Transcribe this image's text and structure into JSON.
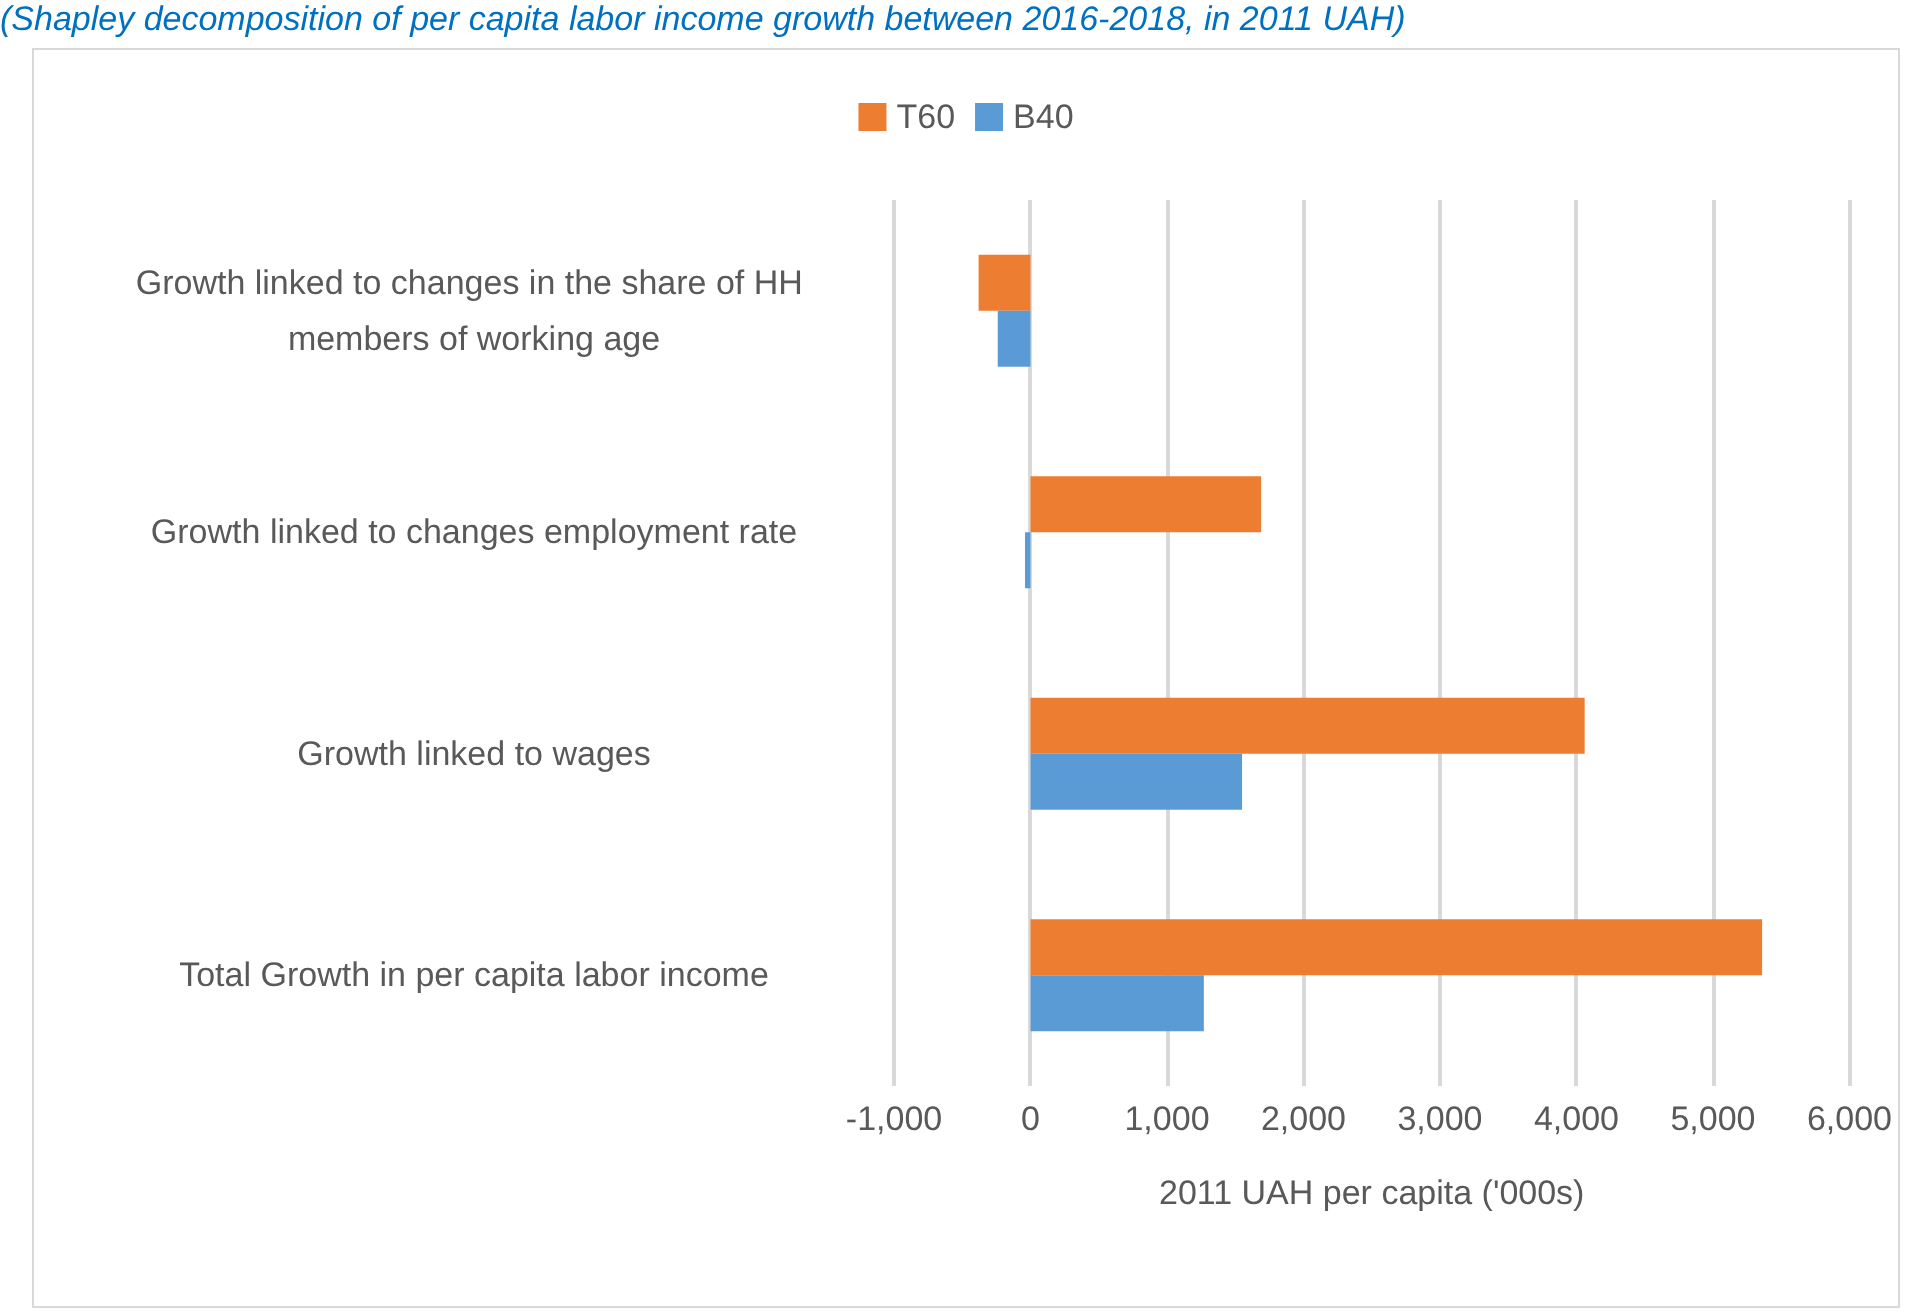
{
  "chart_data": {
    "type": "bar",
    "orientation": "horizontal",
    "title": "(Shapley decomposition of per capita labor income growth between 2016-2018, in 2011 UAH)",
    "xlabel": "2011 UAH per capita ('000s)",
    "categories": [
      "Growth linked to changes in the share of HH members of working age",
      "Growth linked to changes employment rate",
      "Growth linked to wages",
      "Total Growth in per capita labor income"
    ],
    "series": [
      {
        "name": "T60",
        "color": "#ed7d31",
        "values": [
          -380,
          1690,
          4060,
          5360
        ]
      },
      {
        "name": "B40",
        "color": "#5b9bd5",
        "values": [
          -240,
          -40,
          1550,
          1270
        ]
      }
    ],
    "xlim": [
      -1000,
      6000
    ],
    "xticks": [
      {
        "value": -1000,
        "label": "-1,000"
      },
      0,
      {
        "value": 1000,
        "label": "1,000"
      },
      {
        "value": 2000,
        "label": "2,000"
      },
      {
        "value": 3000,
        "label": "3,000"
      },
      {
        "value": 4000,
        "label": "4,000"
      },
      {
        "value": 5000,
        "label": "5,000"
      },
      {
        "value": 6000,
        "label": "6,000"
      }
    ],
    "grid": "x",
    "legend": "top"
  }
}
